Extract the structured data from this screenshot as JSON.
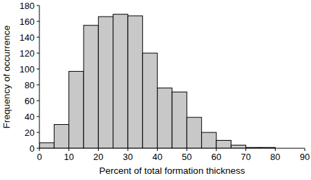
{
  "chart_data": {
    "type": "histogram",
    "x_label": "Percent of total formation thickness",
    "y_label": "Frequency of occurrence",
    "bins": [
      0,
      5,
      10,
      15,
      20,
      25,
      30,
      35,
      40,
      45,
      50,
      55,
      60,
      65,
      70,
      75,
      80
    ],
    "values": [
      7,
      30,
      97,
      155,
      166,
      169,
      167,
      120,
      76,
      71,
      39,
      20,
      10,
      4,
      1,
      1
    ],
    "color": "#c8c8c8",
    "xlim": [
      0,
      90
    ],
    "xticks": [
      0,
      10,
      20,
      30,
      40,
      50,
      60,
      70,
      80,
      90
    ],
    "ylim": [
      0,
      180
    ],
    "yticks": [
      0,
      20,
      40,
      60,
      80,
      100,
      120,
      140,
      160,
      180
    ],
    "grid": false
  }
}
